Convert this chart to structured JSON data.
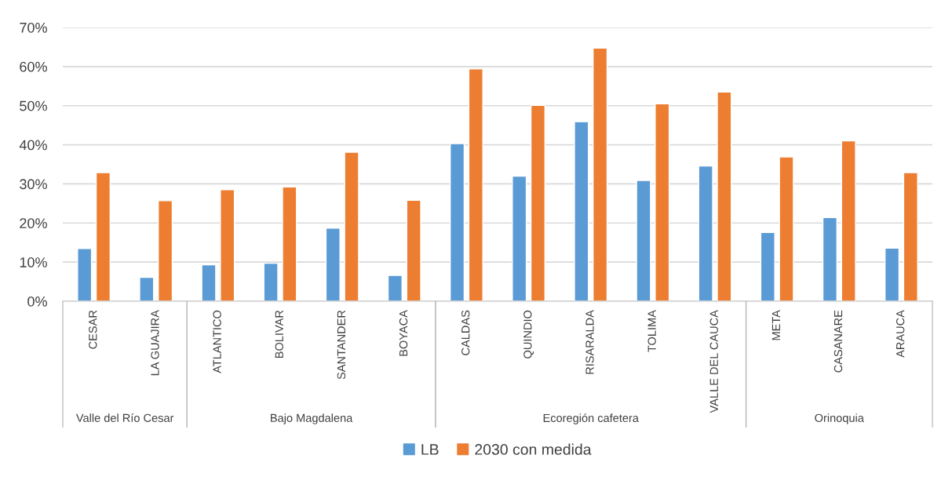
{
  "chart_data": {
    "type": "bar",
    "categories": [
      "CESAR",
      "LA GUAJIRA",
      "ATLANTICO",
      "BOLIVAR",
      "SANTANDER",
      "BOYACA",
      "CALDAS",
      "QUINDIO",
      "RISARALDA",
      "TOLIMA",
      "VALLE DEL CAUCA",
      "META",
      "CASANARE",
      "ARAUCA"
    ],
    "series": [
      {
        "name": "LB",
        "color": "#5b9bd5",
        "values": [
          13.5,
          6.1,
          9.3,
          9.7,
          18.7,
          6.6,
          40.3,
          32.0,
          45.9,
          30.9,
          34.6,
          17.6,
          21.4,
          13.6
        ]
      },
      {
        "name": "2030 con medida",
        "color": "#ed7d31",
        "values": [
          32.9,
          25.7,
          28.5,
          29.2,
          38.1,
          25.8,
          59.4,
          50.1,
          64.7,
          50.5,
          53.5,
          36.9,
          41.0,
          32.9
        ]
      }
    ],
    "annotations": [
      "Valle del Río Cesar",
      "Bajo Magdalena",
      "Ecoregión cafetera",
      "Orinoquia"
    ],
    "ylim": [
      0,
      70
    ],
    "yticks": [
      {
        "value": 0,
        "label": "0%"
      },
      {
        "value": 10,
        "label": "10%"
      },
      {
        "value": 20,
        "label": "20%"
      },
      {
        "value": 30,
        "label": "30%"
      },
      {
        "value": 40,
        "label": "40%"
      },
      {
        "value": 50,
        "label": "50%"
      },
      {
        "value": 60,
        "label": "60%"
      },
      {
        "value": 70,
        "label": "70%"
      }
    ],
    "grid": "y",
    "legend": "bottom"
  }
}
